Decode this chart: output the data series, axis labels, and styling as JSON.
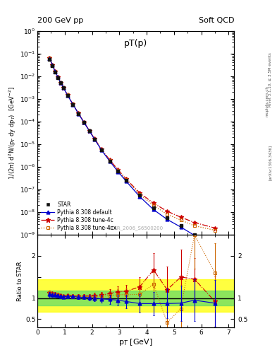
{
  "title_main": "pT(p)",
  "header_left": "200 GeV pp",
  "header_right": "Soft QCD",
  "watermark": "STAR_2006_S6500200",
  "right_label": "Rivet 3.1.10, ≥ 3.5M events",
  "right_label2": "[arXiv:1306.3436]",
  "right_label3": "mcplots.cern.ch",
  "star_x": [
    0.45,
    0.55,
    0.65,
    0.75,
    0.85,
    0.95,
    1.1,
    1.3,
    1.5,
    1.7,
    1.9,
    2.1,
    2.35,
    2.65,
    2.95,
    3.25,
    3.75,
    4.25,
    4.75,
    5.25,
    5.75,
    6.5
  ],
  "star_y": [
    0.055,
    0.028,
    0.015,
    0.0085,
    0.005,
    0.003,
    0.0014,
    0.00055,
    0.00022,
    9e-05,
    3.8e-05,
    1.6e-05,
    5.5e-06,
    1.8e-06,
    6.5e-07,
    2.5e-07,
    5.5e-08,
    1.5e-08,
    5.5e-09,
    2.5e-09,
    1e-09,
    2.5e-10
  ],
  "star_yerr_lo": [
    0.002,
    0.001,
    0.0005,
    0.0003,
    0.0002,
    0.0001,
    5e-05,
    2e-05,
    8e-06,
    3e-06,
    1.5e-06,
    6e-07,
    2e-07,
    7e-08,
    2.5e-08,
    1e-08,
    3e-09,
    1e-09,
    5e-10,
    3e-10,
    1.5e-10,
    5e-11
  ],
  "star_yerr_hi": [
    0.002,
    0.001,
    0.0005,
    0.0003,
    0.0002,
    0.0001,
    5e-05,
    2e-05,
    8e-06,
    3e-06,
    1.5e-06,
    6e-07,
    2e-07,
    7e-08,
    2.5e-08,
    1e-08,
    3e-09,
    1e-09,
    5e-10,
    3e-10,
    1.5e-10,
    5e-11
  ],
  "py_default_x": [
    0.45,
    0.55,
    0.65,
    0.75,
    0.85,
    0.95,
    1.1,
    1.3,
    1.5,
    1.7,
    1.9,
    2.1,
    2.35,
    2.65,
    2.95,
    3.25,
    3.75,
    4.25,
    4.75,
    5.25,
    5.75,
    6.5
  ],
  "py_default_y": [
    0.06,
    0.03,
    0.016,
    0.009,
    0.0052,
    0.0031,
    0.00145,
    0.00057,
    0.000225,
    9.2e-05,
    3.85e-05,
    1.6e-05,
    5.4e-06,
    1.75e-06,
    6.2e-07,
    2.3e-07,
    4.8e-08,
    1.3e-08,
    4.8e-09,
    2.2e-09,
    9.5e-10,
    2.2e-10
  ],
  "py_tune4c_x": [
    0.45,
    0.55,
    0.65,
    0.75,
    0.85,
    0.95,
    1.1,
    1.3,
    1.5,
    1.7,
    1.9,
    2.1,
    2.35,
    2.65,
    2.95,
    3.25,
    3.75,
    4.25,
    4.75,
    5.25,
    5.75,
    6.5
  ],
  "py_tune4c_y": [
    0.062,
    0.031,
    0.0165,
    0.0092,
    0.0053,
    0.00315,
    0.00148,
    0.00058,
    0.00023,
    9.5e-05,
    4e-05,
    1.7e-05,
    5.9e-06,
    2e-06,
    7.5e-07,
    2.9e-07,
    7e-08,
    2.5e-08,
    1.1e-08,
    6e-09,
    3.5e-09,
    2e-09
  ],
  "py_tune4cx_x": [
    0.45,
    0.55,
    0.65,
    0.75,
    0.85,
    0.95,
    1.1,
    1.3,
    1.5,
    1.7,
    1.9,
    2.1,
    2.35,
    2.65,
    2.95,
    3.25,
    3.75,
    4.25,
    4.75,
    5.25,
    5.75,
    6.5
  ],
  "py_tune4cx_y": [
    0.0615,
    0.0305,
    0.0162,
    0.0091,
    0.00525,
    0.00312,
    0.00146,
    0.000575,
    0.000228,
    9.3e-05,
    3.9e-05,
    1.65e-05,
    5.7e-06,
    1.9e-06,
    7e-07,
    2.7e-07,
    6e-08,
    2e-08,
    8e-09,
    4.5e-09,
    2.5e-09,
    1.6e-09
  ],
  "ratio_x": [
    0.45,
    0.55,
    0.65,
    0.75,
    0.85,
    0.95,
    1.1,
    1.3,
    1.5,
    1.7,
    1.9,
    2.1,
    2.35,
    2.65,
    2.95,
    3.25,
    3.75,
    4.25,
    4.75,
    5.25,
    5.75,
    6.5
  ],
  "ratio_default_y": [
    1.09,
    1.07,
    1.07,
    1.06,
    1.04,
    1.03,
    1.04,
    1.04,
    1.02,
    1.02,
    1.01,
    1.0,
    0.98,
    0.97,
    0.95,
    0.92,
    0.87,
    0.87,
    0.87,
    0.88,
    0.95,
    0.88
  ],
  "ratio_default_err": [
    0.06,
    0.05,
    0.05,
    0.04,
    0.04,
    0.04,
    0.04,
    0.04,
    0.05,
    0.05,
    0.06,
    0.07,
    0.09,
    0.11,
    0.13,
    0.16,
    0.22,
    0.28,
    0.35,
    0.42,
    0.5,
    0.55
  ],
  "ratio_tune4c_y": [
    1.13,
    1.11,
    1.1,
    1.08,
    1.06,
    1.05,
    1.06,
    1.05,
    1.05,
    1.05,
    1.05,
    1.06,
    1.07,
    1.11,
    1.15,
    1.16,
    1.27,
    1.67,
    1.2,
    1.5,
    1.45,
    0.92
  ],
  "ratio_tune4c_err": [
    0.05,
    0.04,
    0.04,
    0.04,
    0.03,
    0.03,
    0.04,
    0.04,
    0.04,
    0.04,
    0.05,
    0.06,
    0.08,
    0.1,
    0.13,
    0.15,
    0.22,
    0.4,
    0.55,
    0.65,
    0.5,
    0.6
  ],
  "ratio_tune4cx_y": [
    1.12,
    1.09,
    1.08,
    1.07,
    1.05,
    1.04,
    1.05,
    1.05,
    1.04,
    1.03,
    1.03,
    1.03,
    1.04,
    1.06,
    1.08,
    1.08,
    1.09,
    1.33,
    0.42,
    0.75,
    2.5,
    1.6
  ],
  "ratio_tune4cx_err": [
    0.05,
    0.04,
    0.04,
    0.04,
    0.03,
    0.03,
    0.04,
    0.04,
    0.04,
    0.04,
    0.05,
    0.06,
    0.08,
    0.1,
    0.13,
    0.15,
    0.22,
    0.35,
    0.45,
    0.55,
    0.8,
    0.7
  ],
  "color_default": "#0000cc",
  "color_tune4c": "#cc0000",
  "color_tune4cx": "#cc6600",
  "color_star": "#111111",
  "band_yellow": [
    0.68,
    1.45
  ],
  "band_green": [
    0.82,
    1.18
  ],
  "ylim_main": [
    1e-09,
    1.0
  ],
  "xlim": [
    0.0,
    7.2
  ],
  "ratio_ylim": [
    0.3,
    2.5
  ],
  "ratio_yticks": [
    0.5,
    1.0,
    1.5,
    2.0
  ],
  "ratio_yticklabels": [
    "0.5",
    "1",
    "",
    "2"
  ]
}
